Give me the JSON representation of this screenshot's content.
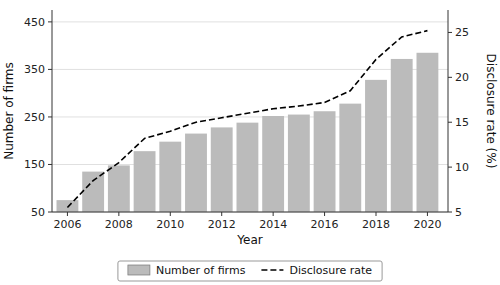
{
  "chart_data": {
    "type": "bar",
    "x": [
      2006,
      2007,
      2008,
      2009,
      2010,
      2011,
      2012,
      2013,
      2014,
      2015,
      2016,
      2017,
      2018,
      2019,
      2020
    ],
    "xlim": [
      2005.4,
      2020.8
    ],
    "xticks": [
      2006,
      2008,
      2010,
      2012,
      2014,
      2016,
      2018,
      2020
    ],
    "xlabel": "Year",
    "ylabel": "Number of firms",
    "y2label": "Disclosure rate (%)",
    "ylim": [
      50,
      475
    ],
    "yticks": [
      50,
      150,
      250,
      350,
      450
    ],
    "y2lim": [
      5,
      27.5
    ],
    "y2ticks": [
      5,
      10,
      15,
      20,
      25
    ],
    "grid": true,
    "legend": "bottom",
    "series": [
      {
        "name": "Number of firms",
        "type": "bar",
        "color": "#bbbbbb",
        "values": [
          75,
          135,
          148,
          178,
          198,
          215,
          228,
          238,
          252,
          255,
          262,
          278,
          328,
          372,
          385
        ]
      },
      {
        "name": "Disclosure rate",
        "type": "line",
        "axis": "y2",
        "color": "#000000",
        "line_style": "dashed",
        "values": [
          5.5,
          8.5,
          10.5,
          13.2,
          14.0,
          15.0,
          15.5,
          16.0,
          16.5,
          16.8,
          17.2,
          18.5,
          22.0,
          24.5,
          25.2
        ]
      }
    ]
  }
}
